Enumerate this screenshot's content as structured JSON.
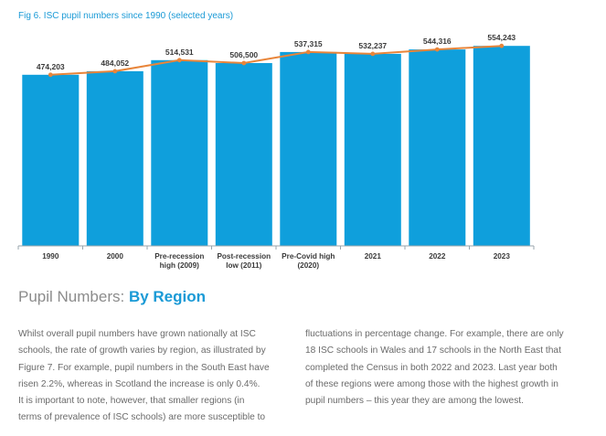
{
  "figure": {
    "title": "Fig 6. ISC pupil numbers since 1990 (selected years)"
  },
  "chart_data": {
    "type": "bar",
    "title": "Fig 6. ISC pupil numbers since 1990 (selected years)",
    "categories": [
      [
        "1990"
      ],
      [
        "2000"
      ],
      [
        "Pre-recession",
        "high (2009)"
      ],
      [
        "Post-recession",
        "low (2011)"
      ],
      [
        "Pre-Covid high",
        "(2020)"
      ],
      [
        "2021"
      ],
      [
        "2022"
      ],
      [
        "2023"
      ]
    ],
    "values": [
      474203,
      484052,
      514531,
      506500,
      537315,
      532237,
      544316,
      554243
    ],
    "labels": [
      "474,203",
      "484,052",
      "514,531",
      "506,500",
      "537,315",
      "532,237",
      "544,316",
      "554,243"
    ],
    "overlay": "line",
    "xlabel": "",
    "ylabel": "",
    "ylim": [
      0,
      580000
    ],
    "grid": false,
    "bar_color": "#0f9fdc",
    "line_color": "#e8853a"
  },
  "section": {
    "heading_plain": "Pupil Numbers: ",
    "heading_bold": "By Region"
  },
  "body": {
    "left_lines": [
      "Whilst overall pupil numbers have grown nationally at ISC",
      "schools, the rate of growth varies by region, as illustrated by",
      "Figure 7. For example, pupil numbers in the South East have",
      "risen 2.2%, whereas in Scotland the increase is only 0.4%.",
      "It is important to note, however, that smaller regions (in",
      "terms of prevalence of ISC schools) are more susceptible to"
    ],
    "right_lines": [
      "fluctuations in percentage change. For example, there are only",
      "18 ISC schools in Wales and 17 schools in the North East that",
      "completed the Census in both 2022 and 2023. Last year both",
      "of these regions were among those with the highest growth in",
      "pupil numbers – this year they are among the lowest."
    ]
  }
}
